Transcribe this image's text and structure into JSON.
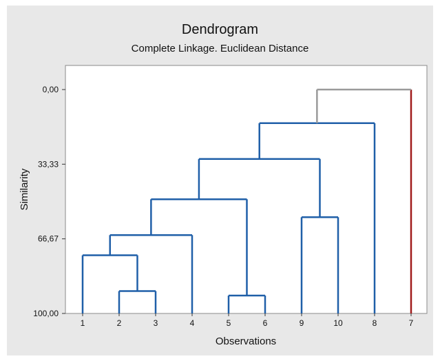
{
  "chart_data": {
    "type": "dendrogram",
    "title": "Dendrogram",
    "subtitle": "Complete Linkage. Euclidean Distance",
    "xlabel": "Observations",
    "ylabel": "Similarity",
    "ylim": [
      0,
      100
    ],
    "y_inverted": true,
    "y_ticks": [
      {
        "value": 0,
        "label": "0,00"
      },
      {
        "value": 33.33,
        "label": "33,33"
      },
      {
        "value": 66.67,
        "label": "66,67"
      },
      {
        "value": 100,
        "label": "100,00"
      }
    ],
    "leaf_order": [
      "1",
      "2",
      "3",
      "4",
      "5",
      "6",
      "9",
      "10",
      "8",
      "7"
    ],
    "merges": [
      {
        "left": "2",
        "right": "3",
        "similarity": 90.0,
        "color": "#1f5fa8"
      },
      {
        "left": "5",
        "right": "6",
        "similarity": 92.0,
        "color": "#1f5fa8"
      },
      {
        "left": "1",
        "right": [
          "2",
          "3"
        ],
        "similarity": 74.0,
        "color": "#1f5fa8"
      },
      {
        "left": "9",
        "right": "10",
        "similarity": 57.0,
        "color": "#1f5fa8"
      },
      {
        "left": [
          "1",
          "2",
          "3"
        ],
        "right": "4",
        "similarity": 65.0,
        "color": "#1f5fa8"
      },
      {
        "left": [
          "1",
          "2",
          "3",
          "4"
        ],
        "right": [
          "5",
          "6"
        ],
        "similarity": 49.0,
        "color": "#1f5fa8"
      },
      {
        "left": [
          "1",
          "2",
          "3",
          "4",
          "5",
          "6"
        ],
        "right": [
          "9",
          "10"
        ],
        "similarity": 31.0,
        "color": "#1f5fa8"
      },
      {
        "left": [
          "1",
          "2",
          "3",
          "4",
          "5",
          "6",
          "9",
          "10"
        ],
        "right": "8",
        "similarity": 15.0,
        "color": "#1f5fa8"
      },
      {
        "left": [
          "1",
          "2",
          "3",
          "4",
          "5",
          "6",
          "9",
          "10",
          "8"
        ],
        "right": "7",
        "similarity": 0.0,
        "color": "#9a9a9a"
      }
    ],
    "singleton_colors": {
      "7": "#a01a1a"
    },
    "plot_background": "#ffffff",
    "frame_background": "#e8e8e8",
    "grid": false
  }
}
